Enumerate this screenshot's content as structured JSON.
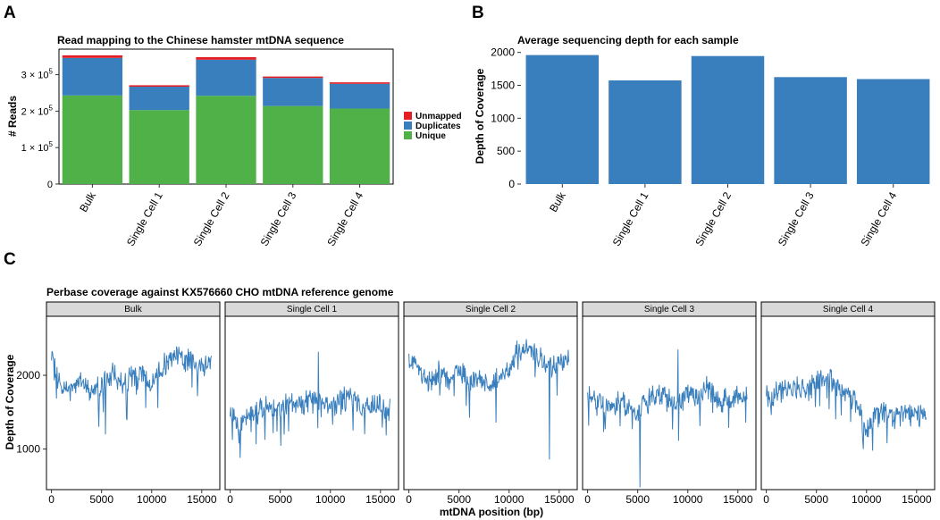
{
  "panel_letters": {
    "a": "A",
    "b": "B",
    "c": "C"
  },
  "colors": {
    "unique": "#4fb148",
    "duplicates": "#3a7fbd",
    "unmapped": "#e31e24",
    "bar_b": "#3a7fbd",
    "line": "#3a7fbd",
    "strip": "#d9d9d9"
  },
  "chart_data": [
    {
      "type": "bar",
      "stacked": true,
      "title": "Read mapping to the Chinese hamster mtDNA sequence",
      "xlabel": "",
      "ylabel": "# Reads",
      "categories": [
        "Bulk",
        "Single Cell 1",
        "Single Cell 2",
        "Single Cell 3",
        "Single Cell 4"
      ],
      "series": [
        {
          "name": "Unique",
          "values": [
            243000,
            203000,
            242000,
            214000,
            207000
          ]
        },
        {
          "name": "Duplicates",
          "values": [
            103000,
            64000,
            99000,
            77000,
            68000
          ]
        },
        {
          "name": "Unmapped",
          "values": [
            7000,
            4000,
            7000,
            4000,
            4000
          ]
        }
      ],
      "legend_order": [
        "Unmapped",
        "Duplicates",
        "Unique"
      ],
      "legend": "right",
      "ylim": [
        0,
        370000
      ],
      "yticks": [
        0,
        100000,
        200000,
        300000
      ],
      "ytick_labels": [
        "0",
        "1 × 10",
        "2 × 10",
        "3 × 10"
      ],
      "ytick_exp": [
        "",
        "5",
        "5",
        "5"
      ]
    },
    {
      "type": "bar",
      "title": "Average sequencing depth for each sample",
      "xlabel": "",
      "ylabel": "Depth of Coverage",
      "categories": [
        "Bulk",
        "Single Cell 1",
        "Single Cell 2",
        "Single Cell 3",
        "Single Cell 4"
      ],
      "values": [
        1960,
        1575,
        1945,
        1625,
        1595
      ],
      "ylim": [
        0,
        2050
      ],
      "yticks": [
        0,
        500,
        1000,
        1500,
        2000
      ]
    },
    {
      "type": "line",
      "title": "Perbase coverage against KX576660 CHO mtDNA reference genome",
      "xlabel": "mtDNA position (bp)",
      "ylabel": "Depth of Coverage",
      "xlim": [
        -500,
        16800
      ],
      "ylim": [
        450,
        2800
      ],
      "xticks": [
        0,
        5000,
        10000,
        15000
      ],
      "yticks": [
        1000,
        2000
      ],
      "series": [
        {
          "name": "Bulk",
          "x": [
            0,
            1000,
            2000,
            3000,
            4000,
            5000,
            6000,
            7000,
            8000,
            9000,
            10000,
            11000,
            12000,
            13000,
            14000,
            15000,
            16000
          ],
          "y": [
            2200,
            1850,
            1780,
            1950,
            1800,
            1850,
            2000,
            1900,
            1950,
            2050,
            1880,
            2100,
            2300,
            2200,
            2200,
            2100,
            2150
          ]
        },
        {
          "name": "Single Cell 1",
          "x": [
            0,
            1000,
            2000,
            3000,
            4000,
            5000,
            6000,
            7000,
            8000,
            9000,
            10000,
            11000,
            12000,
            13000,
            14000,
            15000,
            16000
          ],
          "y": [
            1500,
            1300,
            1450,
            1550,
            1600,
            1500,
            1650,
            1600,
            1650,
            1700,
            1550,
            1650,
            1700,
            1600,
            1550,
            1600,
            1550
          ]
        },
        {
          "name": "Single Cell 2",
          "x": [
            0,
            1000,
            2000,
            3000,
            4000,
            5000,
            6000,
            7000,
            8000,
            9000,
            10000,
            11000,
            12000,
            13000,
            14000,
            15000,
            16000
          ],
          "y": [
            2200,
            2100,
            1900,
            2050,
            1950,
            2100,
            1900,
            1950,
            1800,
            2000,
            2100,
            2350,
            2350,
            2250,
            2100,
            2200,
            2200
          ]
        },
        {
          "name": "Single Cell 3",
          "x": [
            0,
            1000,
            2000,
            3000,
            4000,
            5000,
            6000,
            7000,
            8000,
            9000,
            10000,
            11000,
            12000,
            13000,
            14000,
            15000,
            16000
          ],
          "y": [
            1750,
            1600,
            1550,
            1650,
            1600,
            1500,
            1650,
            1750,
            1650,
            1600,
            1800,
            1700,
            1850,
            1650,
            1700,
            1700,
            1750
          ]
        },
        {
          "name": "Single Cell 4",
          "x": [
            0,
            1000,
            2000,
            3000,
            4000,
            5000,
            6000,
            7000,
            8000,
            9000,
            10000,
            11000,
            12000,
            13000,
            14000,
            15000,
            16000
          ],
          "y": [
            1700,
            1750,
            1800,
            1850,
            1800,
            1900,
            1950,
            1850,
            1800,
            1650,
            1250,
            1500,
            1500,
            1450,
            1500,
            1450,
            1500
          ]
        }
      ],
      "spikes": [
        {
          "panel": "Bulk",
          "x": 5400,
          "y": 1200
        },
        {
          "panel": "Single Cell 1",
          "x": 8800,
          "y": 2320
        },
        {
          "panel": "Single Cell 1",
          "x": 1000,
          "y": 880
        },
        {
          "panel": "Single Cell 2",
          "x": 14000,
          "y": 860
        },
        {
          "panel": "Single Cell 3",
          "x": 5200,
          "y": 480
        },
        {
          "panel": "Single Cell 3",
          "x": 9000,
          "y": 2350
        },
        {
          "panel": "Single Cell 4",
          "x": 9700,
          "y": 1000
        }
      ]
    }
  ]
}
